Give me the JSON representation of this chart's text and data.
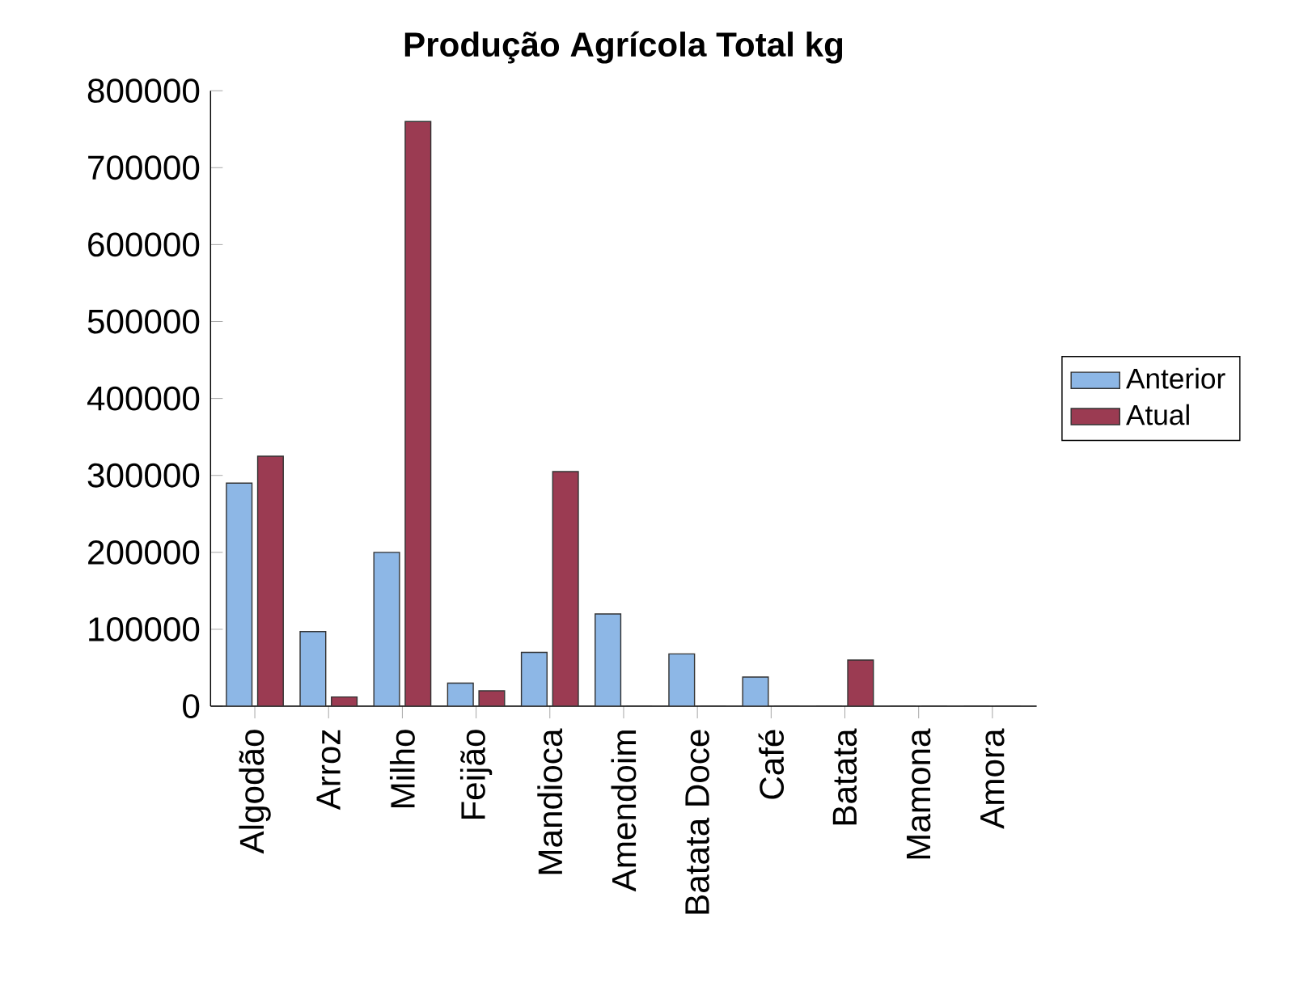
{
  "chart_data": {
    "type": "bar",
    "title": "Produção Agrícola Total kg",
    "categories": [
      "Algodão",
      "Arroz",
      "Milho",
      "Feijão",
      "Mandioca",
      "Amendoim",
      "Batata Doce",
      "Café",
      "Batata",
      "Mamona",
      "Amora"
    ],
    "series": [
      {
        "name": "Anterior",
        "color": "#8db7e6",
        "values": [
          290000,
          97000,
          200000,
          30000,
          70000,
          120000,
          68000,
          38000,
          0,
          0,
          0
        ]
      },
      {
        "name": "Atual",
        "color": "#9b3b52",
        "values": [
          325000,
          12000,
          760000,
          20000,
          305000,
          0,
          0,
          0,
          60000,
          0,
          0
        ]
      }
    ],
    "ylim": [
      0,
      800000
    ],
    "yticks": [
      0,
      100000,
      200000,
      300000,
      400000,
      500000,
      600000,
      700000,
      800000
    ],
    "legend": "right"
  }
}
